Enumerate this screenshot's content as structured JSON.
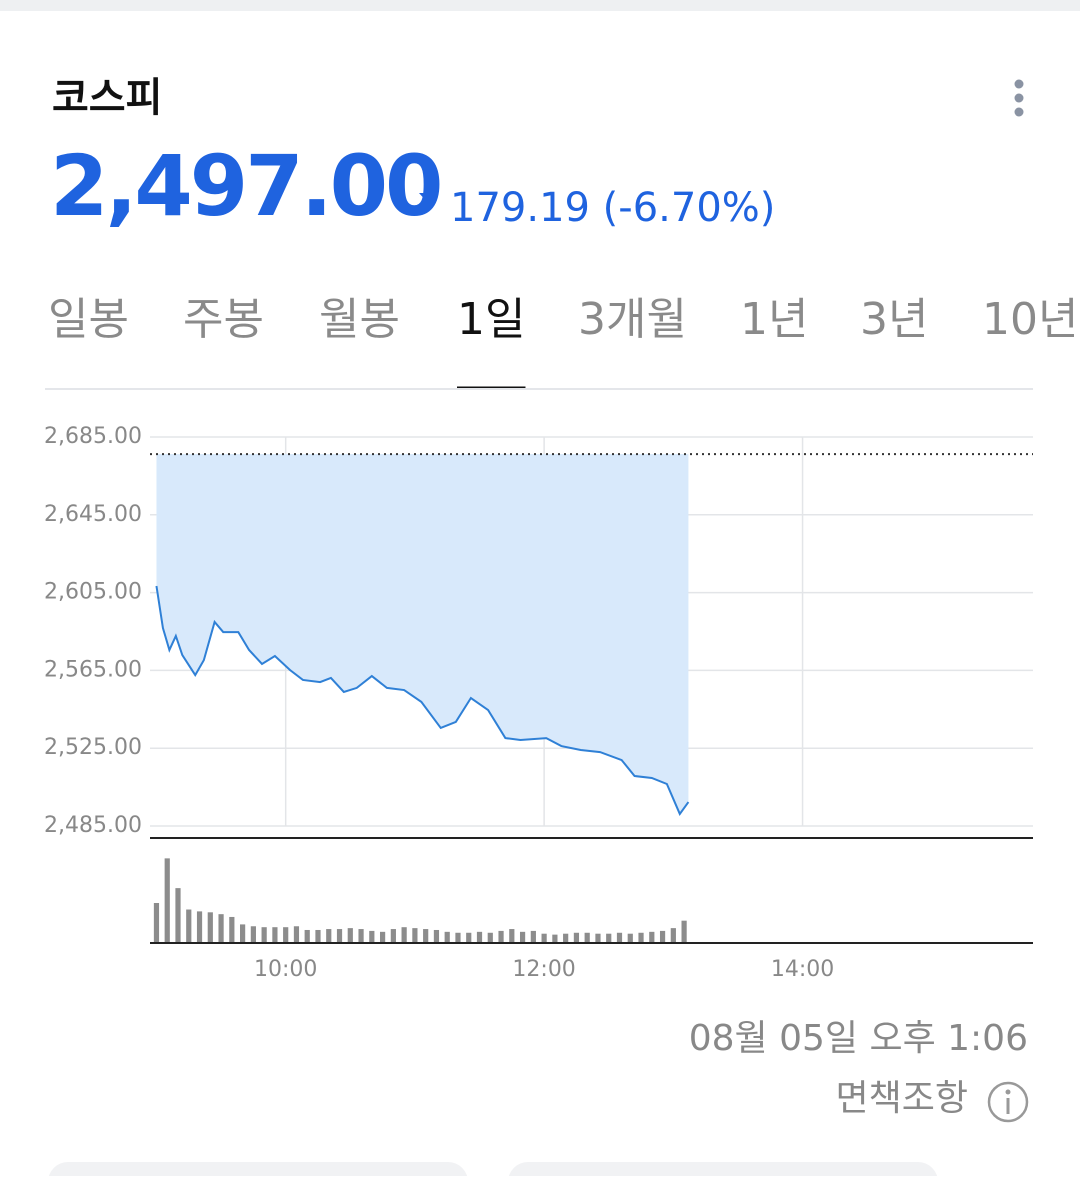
{
  "header": {
    "title": "코스피",
    "price": "2,497.00",
    "change": "179.19 (-6.70%)"
  },
  "tabs": [
    "일봉",
    "주봉",
    "월봉",
    "1일",
    "3개월",
    "1년",
    "3년",
    "10년"
  ],
  "active_tab": 3,
  "chart_data": [
    {
      "type": "line",
      "color": "#2f80d6",
      "fill_color": "#d8e9fb",
      "grid": true,
      "x": [
        540,
        543,
        546,
        549,
        552,
        558,
        562,
        567,
        571,
        578,
        583,
        589,
        595,
        602,
        608,
        616,
        621,
        627,
        633,
        640,
        647,
        655,
        663,
        672,
        679,
        686,
        694,
        702,
        709,
        721,
        728,
        737,
        746,
        756,
        762,
        770,
        777,
        783,
        787
      ],
      "values": [
        2608.4,
        2586.8,
        2575.5,
        2582.7,
        2572.9,
        2562.6,
        2570.3,
        2589.9,
        2584.7,
        2584.7,
        2575.5,
        2568.3,
        2572.4,
        2565.2,
        2560.1,
        2559.0,
        2561.1,
        2553.9,
        2556.0,
        2562.1,
        2556.0,
        2554.9,
        2548.8,
        2535.4,
        2538.5,
        2550.8,
        2544.6,
        2530.2,
        2529.2,
        2530.2,
        2526.1,
        2524.1,
        2523.0,
        2518.9,
        2510.7,
        2509.7,
        2506.6,
        2491.2,
        2497.3
      ],
      "reference_value": 2676.19,
      "xlim": [
        537,
        947
      ],
      "xticks": [
        {
          "value": 600,
          "label": "10:00"
        },
        {
          "value": 720,
          "label": "12:00"
        },
        {
          "value": 840,
          "label": "14:00"
        }
      ],
      "ylim": [
        2485,
        2685
      ],
      "yticks": [
        {
          "value": 2485,
          "label": "2,485.00"
        },
        {
          "value": 2525,
          "label": "2,525.00"
        },
        {
          "value": 2565,
          "label": "2,565.00"
        },
        {
          "value": 2605,
          "label": "2,605.00"
        },
        {
          "value": 2645,
          "label": "2,645.00"
        },
        {
          "value": 2685,
          "label": "2,685.00"
        }
      ]
    },
    {
      "type": "bar",
      "color": "#8c8c8c",
      "x": [
        540,
        545,
        550,
        555,
        560,
        565,
        570,
        575,
        580,
        585,
        590,
        595,
        600,
        605,
        610,
        615,
        620,
        625,
        630,
        635,
        640,
        645,
        650,
        655,
        660,
        665,
        670,
        675,
        680,
        685,
        690,
        695,
        700,
        705,
        710,
        715,
        720,
        725,
        730,
        735,
        740,
        745,
        750,
        755,
        760,
        765,
        770,
        775,
        780,
        785
      ],
      "values": [
        43,
        91,
        59,
        36,
        34,
        33,
        31,
        28,
        20,
        18,
        17,
        17,
        17,
        18,
        14,
        14,
        15,
        15,
        16,
        15,
        13,
        12,
        15,
        17,
        16,
        15,
        14,
        12,
        11,
        11,
        12,
        11,
        13,
        15,
        12,
        13,
        10,
        9,
        10,
        11,
        11,
        10,
        10,
        11,
        10,
        11,
        12,
        13,
        16,
        24
      ],
      "xlim": [
        537,
        947
      ],
      "ylim": [
        0,
        100
      ]
    }
  ],
  "timestamp": "08월 05일 오후 1:06",
  "disclaimer": "면책조항"
}
